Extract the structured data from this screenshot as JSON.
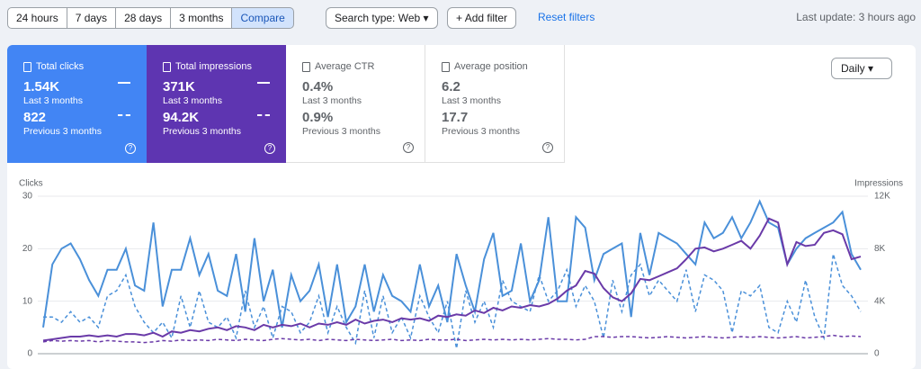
{
  "toolbar": {
    "ranges": [
      "24 hours",
      "7 days",
      "28 days",
      "3 months",
      "Compare"
    ],
    "search_type": "Search type: Web",
    "add_filter": "Add filter",
    "reset": "Reset filters",
    "last_update": "Last update: 3 hours ago"
  },
  "metrics": [
    {
      "label": "Total clicks",
      "current": "1.54K",
      "current_period": "Last 3 months",
      "previous": "822",
      "previous_period": "Previous 3 months",
      "selected": true,
      "color": "#4285f4"
    },
    {
      "label": "Total impressions",
      "current": "371K",
      "current_period": "Last 3 months",
      "previous": "94.2K",
      "previous_period": "Previous 3 months",
      "selected": true,
      "color": "#5e35b1"
    },
    {
      "label": "Average CTR",
      "current": "0.4%",
      "current_period": "Last 3 months",
      "previous": "0.9%",
      "previous_period": "Previous 3 months",
      "selected": false,
      "color": "#ffffff"
    },
    {
      "label": "Average position",
      "current": "6.2",
      "current_period": "Last 3 months",
      "previous": "17.7",
      "previous_period": "Previous 3 months",
      "selected": false,
      "color": "#ffffff"
    }
  ],
  "interval": "Daily",
  "chart_data": {
    "type": "line",
    "ylabel": "Clicks",
    "y2label": "Impressions",
    "ylim": [
      0,
      30
    ],
    "yticks": [
      0,
      10,
      20,
      30
    ],
    "y2lim": [
      0,
      12000
    ],
    "y2ticks": [
      0,
      {
        "value": 4000,
        "label": "4K"
      },
      {
        "value": 8000,
        "label": "8K"
      },
      {
        "value": 12000,
        "label": "12K"
      }
    ],
    "grid": true,
    "series": [
      {
        "color": "#4a90d9",
        "dashed": false,
        "values": [
          5,
          17,
          20,
          21,
          18,
          14,
          11,
          16,
          16,
          20,
          13,
          12,
          25,
          9,
          16,
          16,
          22,
          15,
          19,
          12,
          11,
          19,
          8,
          22,
          10,
          16,
          5,
          15,
          10,
          12,
          17,
          7,
          17,
          6,
          9,
          17,
          8,
          15,
          11,
          10,
          8,
          17,
          9,
          13,
          6,
          19,
          13,
          8,
          18,
          23,
          11,
          12,
          21,
          10,
          14,
          26,
          10,
          10,
          26,
          24,
          14,
          19,
          20,
          21,
          7,
          23,
          15,
          23,
          22,
          21,
          19,
          17,
          25,
          22,
          23,
          26,
          22,
          25,
          29,
          25,
          24,
          17,
          20,
          22,
          23,
          24,
          25,
          27,
          19,
          16
        ]
      },
      {
        "color": "#4a90d9",
        "dashed": true,
        "values": [
          7,
          7,
          6,
          8,
          6,
          7,
          5,
          11,
          12,
          15,
          9,
          6,
          4,
          6,
          3,
          11,
          5,
          12,
          6,
          5,
          7,
          3,
          12,
          5,
          9,
          3,
          9,
          8,
          4,
          6,
          11,
          4,
          9,
          5,
          2,
          12,
          3,
          11,
          4,
          7,
          3,
          11,
          7,
          4,
          10,
          1,
          12,
          6,
          10,
          5,
          14,
          10,
          9,
          8,
          15,
          10,
          12,
          16,
          9,
          13,
          10,
          3,
          14,
          8,
          15,
          17,
          11,
          14,
          12,
          10,
          16,
          8,
          15,
          14,
          12,
          4,
          12,
          11,
          13,
          5,
          4,
          10,
          6,
          14,
          7,
          3,
          19,
          13,
          11,
          8
        ]
      },
      {
        "color": "#6a3aa8",
        "dashed": false,
        "axis": "y2",
        "values": [
          1000,
          1100,
          1200,
          1300,
          1300,
          1400,
          1300,
          1400,
          1300,
          1500,
          1500,
          1400,
          1600,
          1300,
          1700,
          1600,
          1800,
          1700,
          1900,
          2000,
          1800,
          2100,
          2000,
          1800,
          2200,
          2000,
          2200,
          2100,
          2300,
          2000,
          2300,
          2200,
          2400,
          2200,
          2600,
          2300,
          2500,
          2600,
          2400,
          2700,
          2600,
          2700,
          2500,
          2900,
          2800,
          3000,
          2900,
          3300,
          3100,
          3500,
          3300,
          3600,
          3500,
          3700,
          3600,
          3800,
          4200,
          4800,
          5200,
          6300,
          6100,
          5000,
          4300,
          4000,
          4600,
          5700,
          5600,
          5900,
          6200,
          6500,
          7200,
          8000,
          8100,
          7800,
          8000,
          8300,
          8600,
          8000,
          9000,
          10300,
          10000,
          6800,
          8500,
          8200,
          8300,
          9200,
          9400,
          9100,
          7200,
          7400
        ]
      },
      {
        "color": "#6a3aa8",
        "dashed": true,
        "axis": "y2",
        "values": [
          900,
          1000,
          950,
          1000,
          950,
          1000,
          900,
          1000,
          950,
          900,
          900,
          850,
          900,
          1000,
          950,
          1050,
          1000,
          1050,
          1000,
          1100,
          1050,
          1000,
          1100,
          1050,
          1000,
          1100,
          1150,
          1100,
          1050,
          1100,
          1000,
          1100,
          1050,
          1000,
          1100,
          1050,
          1000,
          1050,
          1100,
          1000,
          1050,
          1000,
          1100,
          1050,
          1050,
          1100,
          1000,
          1050,
          1100,
          1050,
          1100,
          1050,
          1100,
          1050,
          1100,
          1150,
          1100,
          1100,
          1050,
          1100,
          1300,
          1300,
          1250,
          1300,
          1300,
          1250,
          1200,
          1250,
          1300,
          1250,
          1200,
          1250,
          1300,
          1250,
          1200,
          1250,
          1300,
          1250,
          1300,
          1250,
          1200,
          1250,
          1300,
          1200,
          1250,
          1300,
          1400,
          1300,
          1350,
          1300
        ]
      }
    ]
  }
}
